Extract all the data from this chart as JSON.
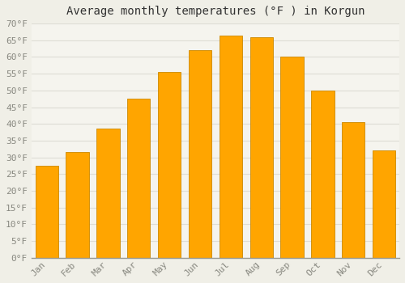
{
  "title": "Average monthly temperatures (°F ) in Korgun",
  "months": [
    "Jan",
    "Feb",
    "Mar",
    "Apr",
    "May",
    "Jun",
    "Jul",
    "Aug",
    "Sep",
    "Oct",
    "Nov",
    "Dec"
  ],
  "values": [
    27.5,
    31.5,
    38.5,
    47.5,
    55.5,
    62,
    66.5,
    66,
    60,
    50,
    40.5,
    32
  ],
  "bar_color": "#FFA500",
  "bar_edge_color": "#CC8800",
  "background_color": "#F0EFE7",
  "plot_bg_color": "#F5F4EE",
  "grid_color": "#DEDDD5",
  "tick_label_color": "#888880",
  "title_color": "#333333",
  "ylim": [
    0,
    70
  ],
  "yticks": [
    0,
    5,
    10,
    15,
    20,
    25,
    30,
    35,
    40,
    45,
    50,
    55,
    60,
    65,
    70
  ],
  "title_fontsize": 10,
  "tick_fontsize": 8,
  "font_family": "monospace"
}
